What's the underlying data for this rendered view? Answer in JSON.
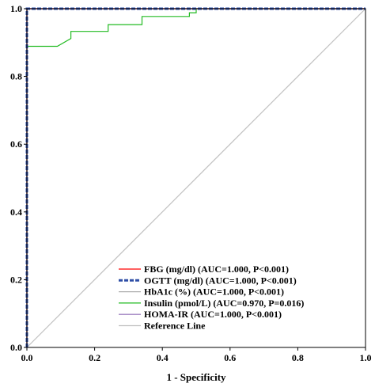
{
  "chart_data": {
    "type": "line",
    "xlabel": "1 - Specificity",
    "ylabel": "",
    "xlim": [
      0,
      1
    ],
    "ylim": [
      0,
      1
    ],
    "x_ticks": [
      "0.0",
      "0.2",
      "0.4",
      "0.6",
      "0.8",
      "1.0"
    ],
    "y_ticks": [
      "0.0",
      "0.2",
      "0.4",
      "0.6",
      "0.8",
      "1.0"
    ],
    "grid": false,
    "legend_position": "bottom-center",
    "series": [
      {
        "name": "FBG (mg/dl) (AUC=1.000, P<0.001)",
        "color": "#ff0000",
        "style": "solid",
        "x": [
          0,
          0,
          1
        ],
        "y": [
          0,
          1,
          1
        ]
      },
      {
        "name": "OGTT (mg/dl) (AUC=1.000, P<0.001)",
        "color": "#2e4ea6",
        "style": "dashed-thick",
        "x": [
          0,
          0,
          1
        ],
        "y": [
          0,
          1,
          1
        ]
      },
      {
        "name": "HbA1c (%) (AUC=1.000, P<0.001)",
        "color": "#b0b0b0",
        "style": "solid",
        "x": [
          0,
          0,
          1
        ],
        "y": [
          0,
          1,
          1
        ]
      },
      {
        "name": "Insulin (pmol/L) (AUC=0.970, P=0.016)",
        "color": "#22bb22",
        "style": "solid",
        "x": [
          0,
          0,
          0.09,
          0.13,
          0.13,
          0.24,
          0.24,
          0.34,
          0.34,
          0.48,
          0.48,
          0.5,
          0.5,
          1
        ],
        "y": [
          0,
          0.889,
          0.889,
          0.912,
          0.933,
          0.933,
          0.953,
          0.953,
          0.977,
          0.977,
          0.988,
          0.988,
          1,
          1
        ]
      },
      {
        "name": "HOMA-IR (AUC=1.000, P<0.001)",
        "color": "#9370b8",
        "style": "solid",
        "x": [
          0,
          0,
          1
        ],
        "y": [
          0,
          1,
          1
        ]
      },
      {
        "name": "Reference Line",
        "color": "#c0c0c0",
        "style": "solid",
        "x": [
          0,
          1
        ],
        "y": [
          0,
          1
        ]
      }
    ]
  }
}
